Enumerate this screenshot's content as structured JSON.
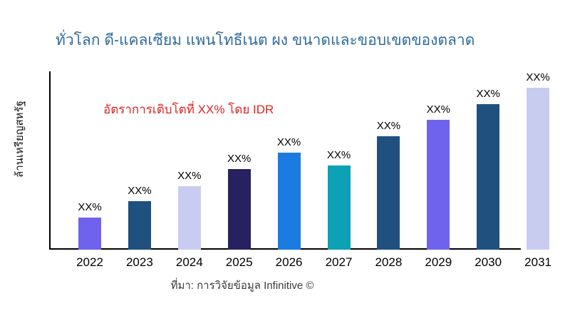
{
  "chart_data": {
    "type": "bar",
    "title": "ทั่วโลก ดี-แคลเซียม แพนโทธีเนต ผง ขนาดและขอบเขตของตลาด",
    "ylabel": "ล้านเหรียญสหรัฐ",
    "xlabel": "",
    "annotation": "อัตราการเติบโตที่ XX% โดย IDR",
    "source": "ที่มา: การวิจัยข้อมูล Infinitive ©",
    "categories": [
      "2022",
      "2023",
      "2024",
      "2025",
      "2026",
      "2027",
      "2028",
      "2029",
      "2030",
      "2031"
    ],
    "values_relative_pct": [
      20,
      30,
      39,
      50,
      60,
      52,
      70,
      80,
      90,
      100
    ],
    "bar_labels": [
      "XX%",
      "XX%",
      "XX%",
      "XX%",
      "XX%",
      "XX%",
      "XX%",
      "XX%",
      "XX%",
      "XX%"
    ],
    "bar_colors": [
      "#6F63EE",
      "#20507E",
      "#C9CCF1",
      "#27215F",
      "#1B7BE1",
      "#0CA1B5",
      "#20507E",
      "#6F63EE",
      "#20507E",
      "#C9CCF1"
    ],
    "ylim": [
      0,
      100
    ],
    "grid": false,
    "legend": false,
    "colors": {
      "title": "#2E6B9E",
      "annotation": "#E02420",
      "axis": "#000000",
      "purple": "#6F63EE",
      "steel_blue": "#20507E",
      "lavender": "#C9CCF1",
      "navy": "#27215F",
      "bright_blue": "#1B7BE1",
      "teal": "#0CA1B5"
    }
  }
}
